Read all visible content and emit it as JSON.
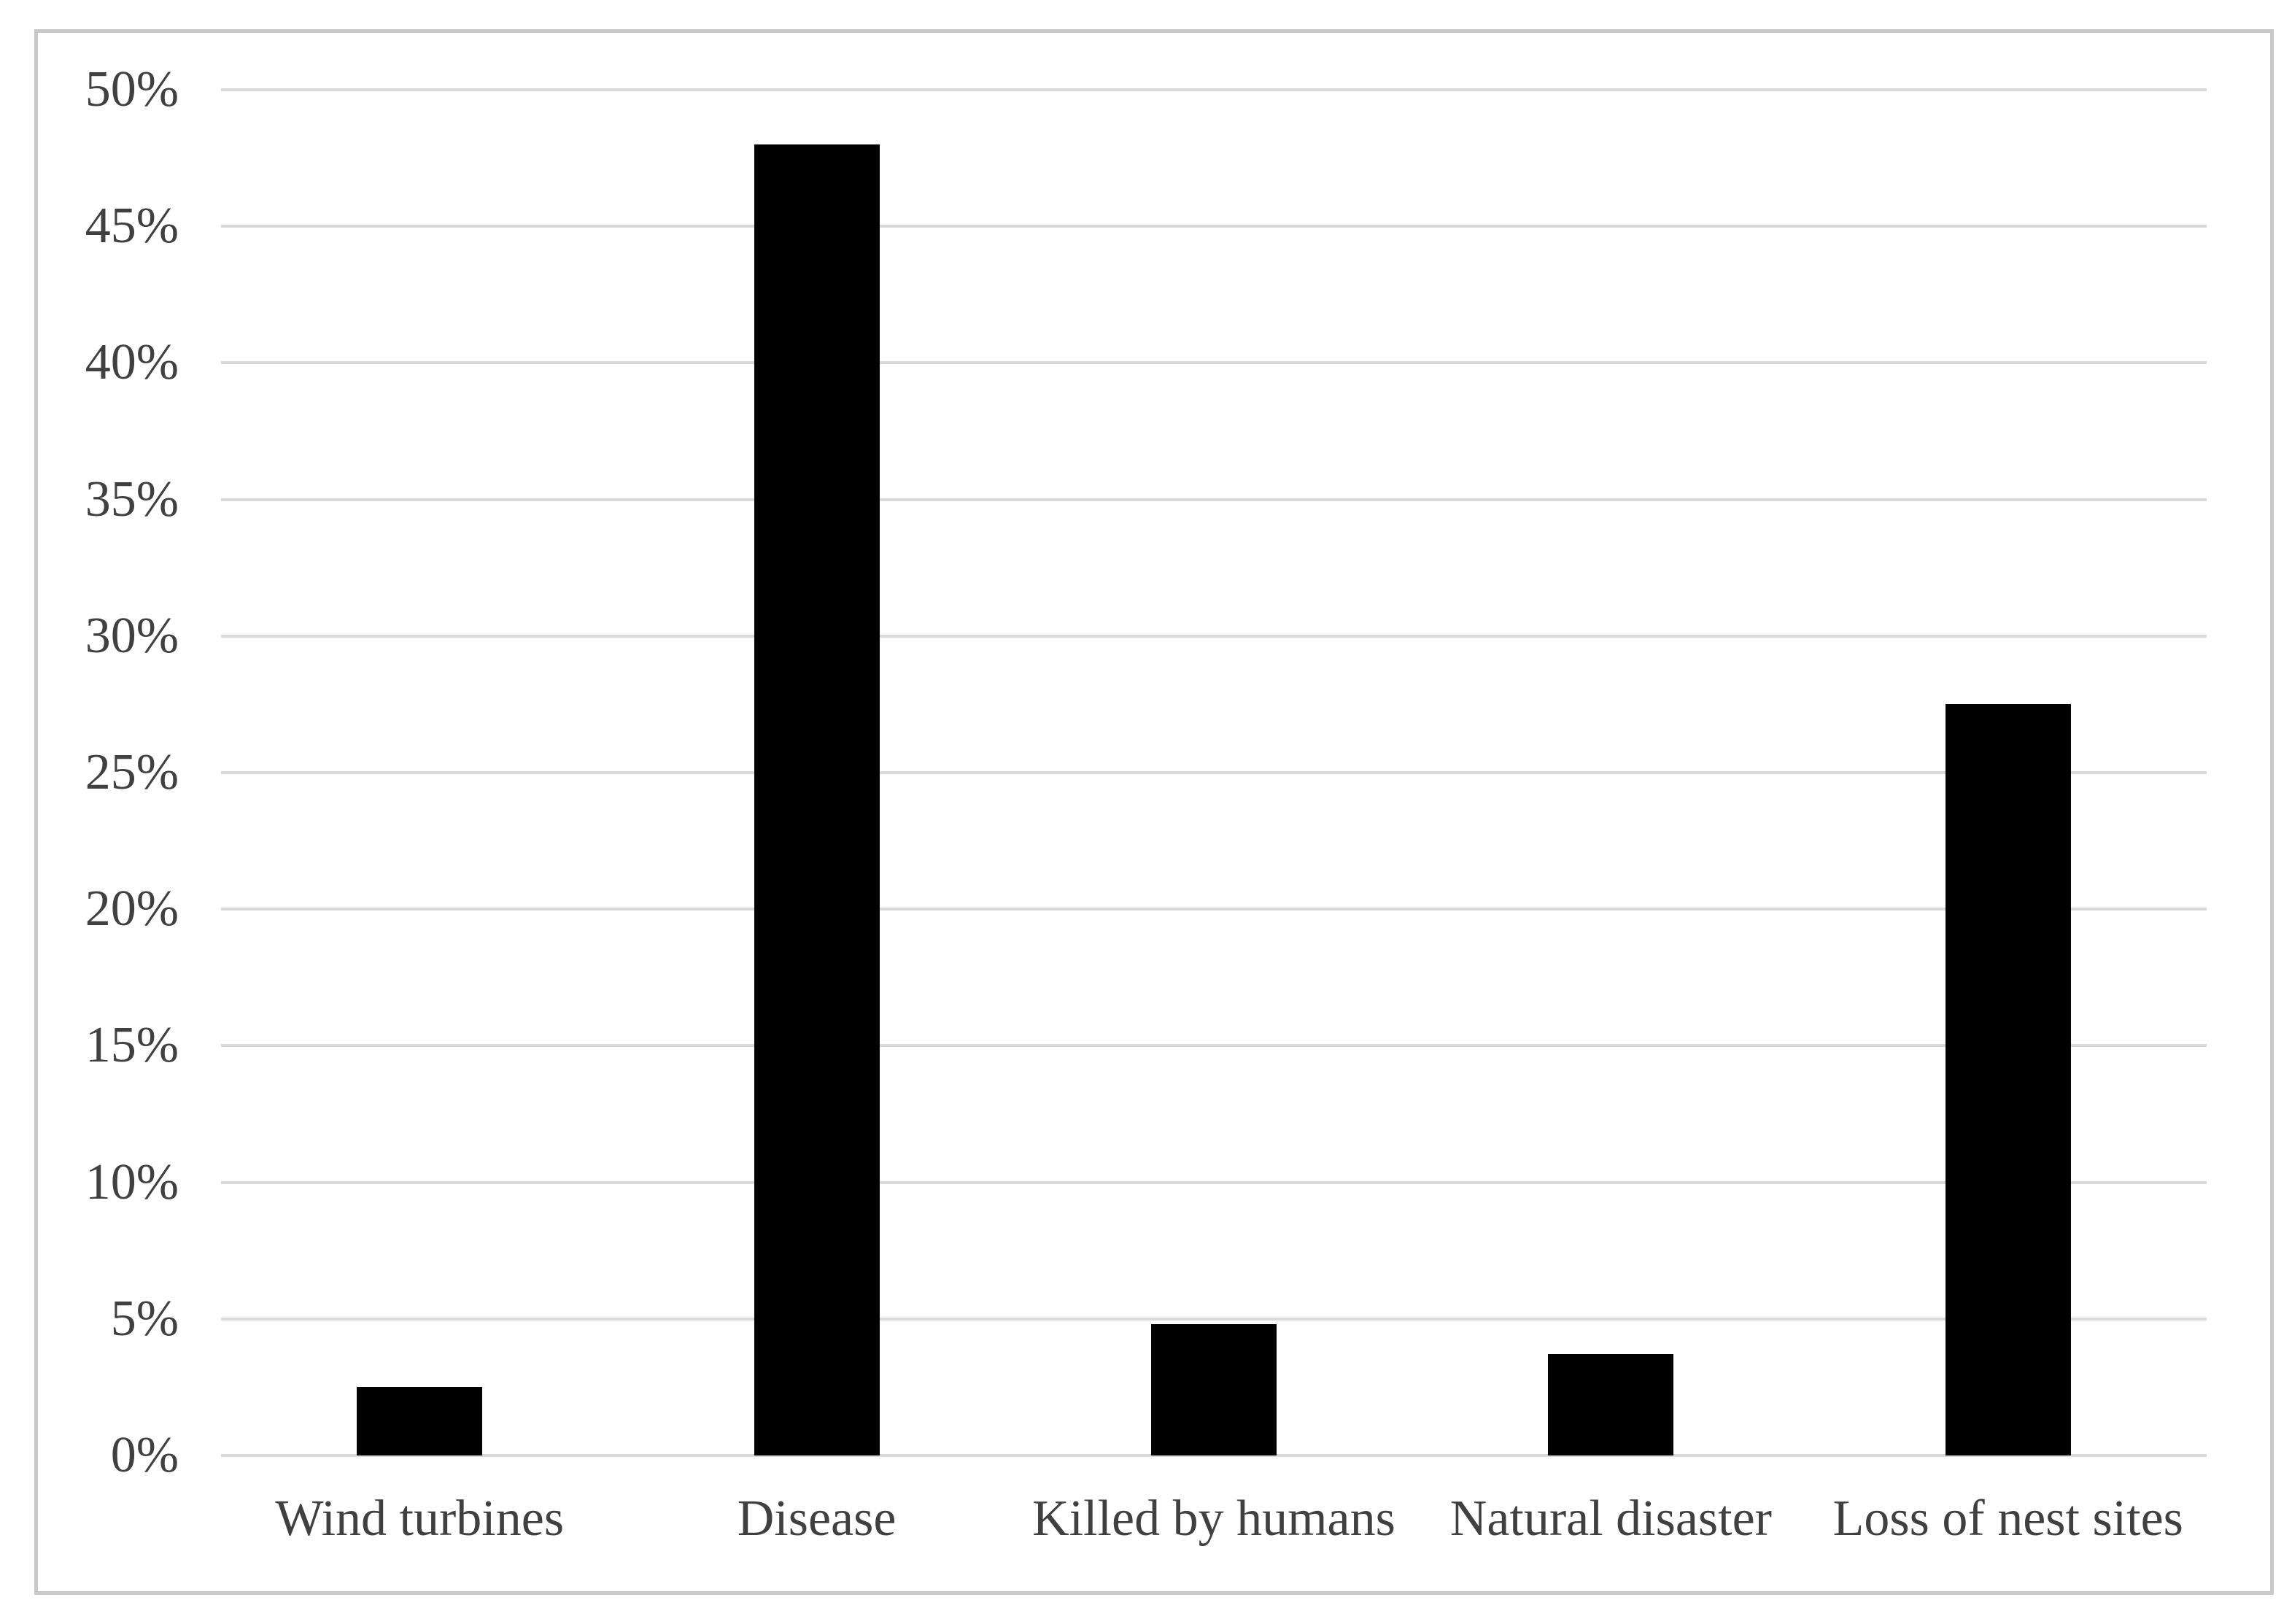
{
  "chart_data": {
    "type": "bar",
    "title": "",
    "xlabel": "",
    "ylabel": "",
    "categories": [
      "Wind turbines",
      "Disease",
      "Killed by humans",
      "Natural disaster",
      "Loss of nest sites"
    ],
    "values": [
      2.5,
      48,
      4.8,
      3.7,
      27.5
    ],
    "unit": "%",
    "ylim": [
      0,
      50
    ],
    "y_tick_step": 5,
    "y_tick_labels": [
      "0%",
      "5%",
      "10%",
      "15%",
      "20%",
      "25%",
      "30%",
      "35%",
      "40%",
      "45%",
      "50%"
    ],
    "grid": true,
    "legend_position": "none",
    "series_name": ""
  },
  "colors": {
    "bar": "#000000",
    "gridline": "#d9d9d9",
    "axis_text": "#404040",
    "frame_border": "#c9c9c9",
    "background": "#ffffff"
  }
}
